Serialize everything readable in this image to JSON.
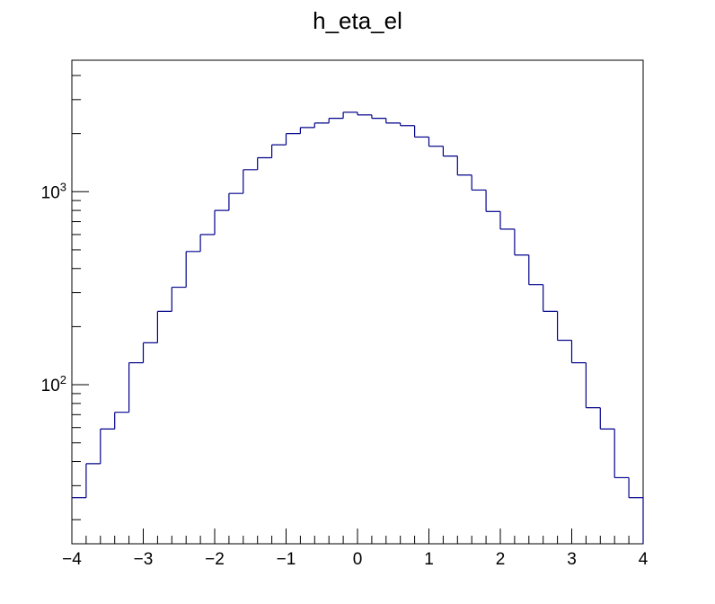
{
  "chart_data": {
    "type": "histogram",
    "title": "h_eta_el",
    "xlabel": "",
    "ylabel": "",
    "xlim": [
      -4,
      4
    ],
    "ylim": [
      15,
      4800
    ],
    "y_scale": "log",
    "grid": false,
    "legend": "none",
    "line_color": "#00008b",
    "bin_edges": [
      -4.0,
      -3.8,
      -3.6,
      -3.4,
      -3.2,
      -3.0,
      -2.8,
      -2.6,
      -2.4,
      -2.2,
      -2.0,
      -1.8,
      -1.6,
      -1.4,
      -1.2,
      -1.0,
      -0.8,
      -0.6,
      -0.4,
      -0.2,
      0.0,
      0.2,
      0.4,
      0.6,
      0.8,
      1.0,
      1.2,
      1.4,
      1.6,
      1.8,
      2.0,
      2.2,
      2.4,
      2.6,
      2.8,
      3.0,
      3.2,
      3.4,
      3.6,
      3.8,
      4.0
    ],
    "values": [
      26,
      39,
      59,
      72,
      130,
      165,
      240,
      320,
      490,
      600,
      800,
      980,
      1300,
      1500,
      1750,
      2000,
      2150,
      2270,
      2400,
      2580,
      2500,
      2400,
      2270,
      2200,
      1920,
      1720,
      1530,
      1220,
      1020,
      790,
      640,
      470,
      330,
      240,
      170,
      130,
      76,
      59,
      33,
      26
    ],
    "x_tick_labels": [
      "−4",
      "−3",
      "−2",
      "−1",
      "0",
      "1",
      "2",
      "3",
      "4"
    ],
    "y_tick_labels": [
      {
        "base": "10",
        "exp": "2",
        "value": 100
      },
      {
        "base": "10",
        "exp": "3",
        "value": 1000
      }
    ]
  }
}
